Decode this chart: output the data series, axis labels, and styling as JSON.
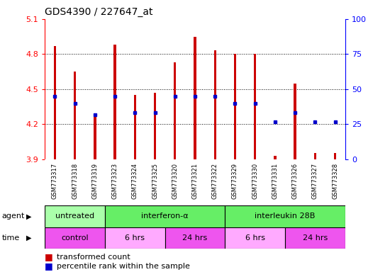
{
  "title": "GDS4390 / 227647_at",
  "samples": [
    "GSM773317",
    "GSM773318",
    "GSM773319",
    "GSM773323",
    "GSM773324",
    "GSM773325",
    "GSM773320",
    "GSM773321",
    "GSM773322",
    "GSM773329",
    "GSM773330",
    "GSM773331",
    "GSM773326",
    "GSM773327",
    "GSM773328"
  ],
  "red_values": [
    4.87,
    4.65,
    4.28,
    4.88,
    4.45,
    4.47,
    4.73,
    4.95,
    4.83,
    4.8,
    4.8,
    3.93,
    4.55,
    3.95,
    3.95
  ],
  "blue_values": [
    4.44,
    4.38,
    4.28,
    4.44,
    4.3,
    4.3,
    4.44,
    4.44,
    4.44,
    4.38,
    4.38,
    4.22,
    4.3,
    4.22,
    4.22
  ],
  "ymin": 3.9,
  "ymax": 5.1,
  "yticks": [
    3.9,
    4.2,
    4.5,
    4.8,
    5.1
  ],
  "y2ticks": [
    0,
    25,
    50,
    75,
    100
  ],
  "bar_color": "#CC0000",
  "dot_color": "#0000CC",
  "agent_groups": [
    {
      "label": "untreated",
      "start": 0,
      "end": 3,
      "color": "#AAFFAA"
    },
    {
      "label": "interferon-α",
      "start": 3,
      "end": 9,
      "color": "#66EE66"
    },
    {
      "label": "interleukin 28B",
      "start": 9,
      "end": 15,
      "color": "#66EE66"
    }
  ],
  "time_groups": [
    {
      "label": "control",
      "start": 0,
      "end": 3,
      "color": "#EE55EE"
    },
    {
      "label": "6 hrs",
      "start": 3,
      "end": 6,
      "color": "#FFAAFF"
    },
    {
      "label": "24 hrs",
      "start": 6,
      "end": 9,
      "color": "#EE55EE"
    },
    {
      "label": "6 hrs",
      "start": 9,
      "end": 12,
      "color": "#FFAAFF"
    },
    {
      "label": "24 hrs",
      "start": 12,
      "end": 15,
      "color": "#EE55EE"
    }
  ]
}
